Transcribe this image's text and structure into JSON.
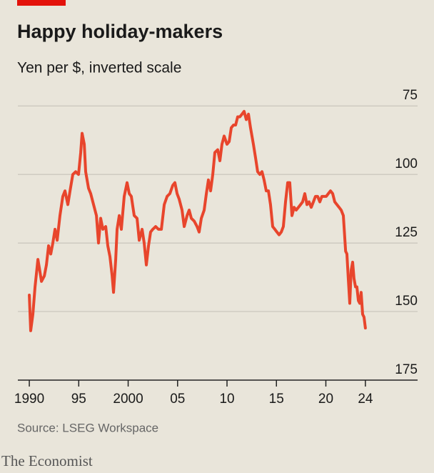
{
  "chart_data": {
    "type": "line",
    "title": "Happy holiday-makers",
    "subtitle": "Yen per $, inverted scale",
    "x": [
      1990.0,
      1990.14,
      1990.36,
      1990.58,
      1990.87,
      1991.01,
      1991.23,
      1991.52,
      1991.73,
      1991.95,
      1992.17,
      1992.38,
      1992.6,
      1992.82,
      1993.1,
      1993.39,
      1993.61,
      1993.9,
      1994.12,
      1994.4,
      1994.69,
      1994.98,
      1995.2,
      1995.34,
      1995.56,
      1995.7,
      1995.99,
      1996.21,
      1996.5,
      1996.79,
      1997.0,
      1997.22,
      1997.44,
      1997.73,
      1997.94,
      1998.16,
      1998.38,
      1998.52,
      1998.74,
      1998.88,
      1999.1,
      1999.31,
      1999.6,
      1999.89,
      2000.11,
      2000.32,
      2000.61,
      2000.9,
      2001.12,
      2001.41,
      2001.62,
      2001.84,
      2002.06,
      2002.27,
      2002.49,
      2002.78,
      2003.07,
      2003.36,
      2003.65,
      2003.94,
      2004.22,
      2004.51,
      2004.73,
      2004.95,
      2005.16,
      2005.45,
      2005.67,
      2005.96,
      2006.17,
      2006.39,
      2006.68,
      2006.97,
      2007.18,
      2007.4,
      2007.69,
      2007.91,
      2008.12,
      2008.34,
      2008.56,
      2008.77,
      2009.06,
      2009.28,
      2009.49,
      2009.71,
      2010.0,
      2010.22,
      2010.43,
      2010.65,
      2010.87,
      2011.08,
      2011.3,
      2011.52,
      2011.73,
      2011.95,
      2012.17,
      2012.38,
      2012.67,
      2012.89,
      2013.1,
      2013.32,
      2013.54,
      2013.75,
      2013.97,
      2014.19,
      2014.4,
      2014.62,
      2014.84,
      2015.05,
      2015.27,
      2015.49,
      2015.7,
      2015.92,
      2016.14,
      2016.35,
      2016.57,
      2016.79,
      2017.0,
      2017.22,
      2017.44,
      2017.65,
      2017.87,
      2018.09,
      2018.3,
      2018.52,
      2018.74,
      2018.95,
      2019.17,
      2019.39,
      2019.6,
      2019.82,
      2020.04,
      2020.25,
      2020.47,
      2020.69,
      2020.9,
      2021.12,
      2021.34,
      2021.55,
      2021.77,
      2022.0,
      2022.13,
      2022.27,
      2022.42,
      2022.56,
      2022.71,
      2022.85,
      2023.0,
      2023.14,
      2023.29,
      2023.43,
      2023.57,
      2023.72,
      2023.86,
      2024.0
    ],
    "series": [
      {
        "name": "Yen per $",
        "color": "#e8452c",
        "values": [
          144,
          157,
          151,
          141,
          131,
          134,
          139,
          137,
          133,
          126,
          129,
          125,
          120,
          124,
          115,
          108,
          106,
          111,
          106,
          100,
          99,
          100,
          92,
          85,
          89,
          99,
          105,
          107,
          111,
          115,
          125,
          116,
          120,
          119,
          126,
          130,
          137,
          143,
          131,
          120,
          115,
          120,
          108,
          103,
          107,
          108,
          115,
          116,
          124,
          120,
          125,
          133,
          126,
          121,
          120,
          119,
          120,
          120,
          111,
          108,
          107,
          104,
          103,
          107,
          109,
          113,
          119,
          115,
          113,
          116,
          117,
          119,
          121,
          116,
          113,
          107,
          102,
          106,
          100,
          92,
          91,
          95,
          89,
          86,
          89,
          88,
          83,
          82,
          82,
          79,
          79,
          78,
          77,
          80,
          78,
          83,
          89,
          94,
          99,
          100,
          99,
          102,
          106,
          106,
          111,
          119,
          120,
          121,
          122,
          121,
          119,
          110,
          103,
          103,
          115,
          112,
          113,
          112,
          111,
          110,
          107,
          111,
          110,
          112,
          110,
          108,
          108,
          110,
          108,
          108,
          108,
          107,
          106,
          107,
          110,
          111,
          112,
          113,
          115,
          128,
          129,
          138,
          147,
          135,
          132,
          138,
          141,
          141,
          146,
          147,
          143,
          151,
          152,
          156
        ]
      }
    ],
    "xlim": [
      1988.84,
      2029.28
    ],
    "xticks": [
      1990,
      {
        "value": 1995,
        "label": "95"
      },
      2000,
      {
        "value": 2005,
        "label": "05"
      },
      {
        "value": 2010,
        "label": "10"
      },
      {
        "value": 2015,
        "label": "15"
      },
      {
        "value": 2020,
        "label": "20"
      },
      {
        "value": 2024,
        "label": "24"
      }
    ],
    "ylim": [
      70,
      175
    ],
    "yticks": [
      75,
      100,
      125,
      150,
      175
    ],
    "inverted_y": true,
    "grid": true,
    "source": "Source: LSEG Workspace",
    "brand": "The Economist"
  }
}
